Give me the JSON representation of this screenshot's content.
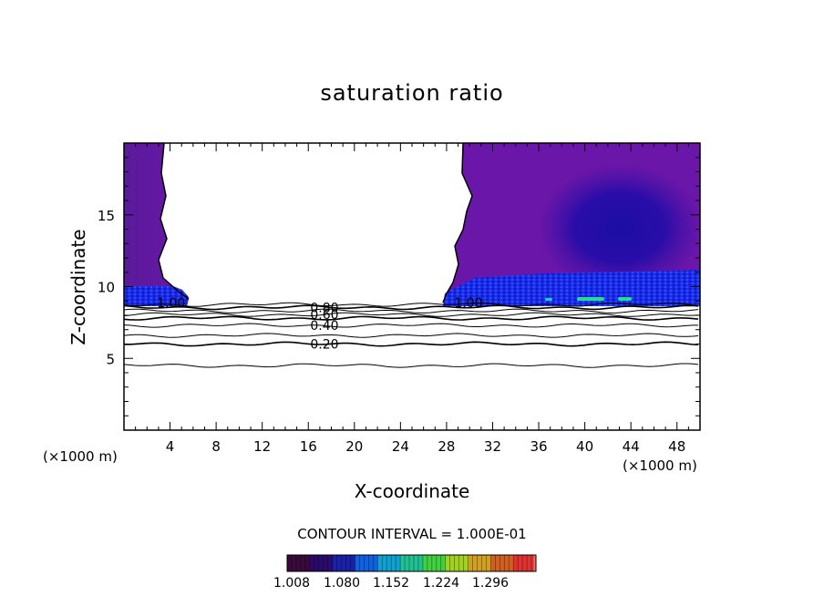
{
  "chart_data": {
    "type": "heatmap",
    "title": "saturation ratio",
    "xlabel": "X-coordinate",
    "ylabel": "Z-coordinate",
    "x_unit": "(×1000 m)",
    "z_unit": "(×1000 m)",
    "xlim": [
      0,
      50
    ],
    "ylim": [
      0,
      20
    ],
    "x_ticks": [
      "4",
      "8",
      "12",
      "16",
      "20",
      "24",
      "28",
      "32",
      "36",
      "40",
      "44",
      "48"
    ],
    "y_ticks": [
      "5",
      "10",
      "15"
    ],
    "contour_interval_text": "CONTOUR INTERVAL = 1.000E-01",
    "contour_labels": [
      {
        "text": "1.00",
        "x": 4.1,
        "z": 8.9
      },
      {
        "text": "1.00",
        "x": 29.9,
        "z": 8.9
      },
      {
        "text": "0.80",
        "x": 17.4,
        "z": 8.55
      },
      {
        "text": "0.60",
        "x": 17.4,
        "z": 8.05
      },
      {
        "text": "0.40",
        "x": 17.4,
        "z": 7.3
      },
      {
        "text": "0.20",
        "x": 17.4,
        "z": 6.0
      }
    ],
    "contour_levels_z": [
      4.5,
      6.0,
      6.6,
      7.3,
      7.8,
      8.05,
      8.3,
      8.55,
      8.75
    ],
    "unsaturated_region_x": [
      [
        3.3,
        5.5
      ],
      [
        28.2,
        30.0
      ]
    ],
    "supersaturated_layer_z": [
      9.0,
      10.3
    ],
    "colorbar": {
      "ticks": [
        "1.008",
        "1.080",
        "1.152",
        "1.224",
        "1.296"
      ],
      "colors": [
        "#3a0a3c",
        "#2a0a6a",
        "#1820a8",
        "#1060e0",
        "#10a0d0",
        "#20c090",
        "#40d040",
        "#a0d020",
        "#d0a020",
        "#d06020",
        "#e03030",
        "#f07070"
      ]
    }
  }
}
